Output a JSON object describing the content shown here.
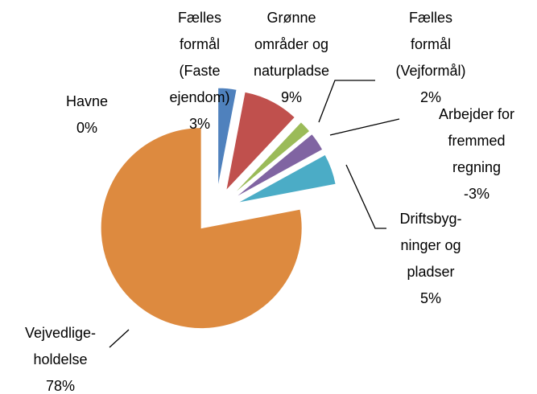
{
  "chart_data": {
    "type": "pie",
    "categories": [
      "Havne",
      "Fælles\nformål\n(Faste\nejendom)",
      "Grønne\nområder og\nnaturpladse",
      "Fælles\nformål\n(Vejformål)",
      "Arbejder for\nfremmed\nregning",
      "Driftsbyg-\nninger og\npladser",
      "Vejvedlige-\nholdelse"
    ],
    "values": [
      0,
      3,
      9,
      2,
      -3,
      5,
      78
    ],
    "value_labels": [
      "0%",
      "3%",
      "9%",
      "2%",
      "-3%",
      "5%",
      "78%"
    ],
    "colors": [
      "#f79646",
      "#4f81bd",
      "#c0504d",
      "#9bbb59",
      "#8064a2",
      "#4bacc6",
      "#dd8a3f"
    ]
  }
}
